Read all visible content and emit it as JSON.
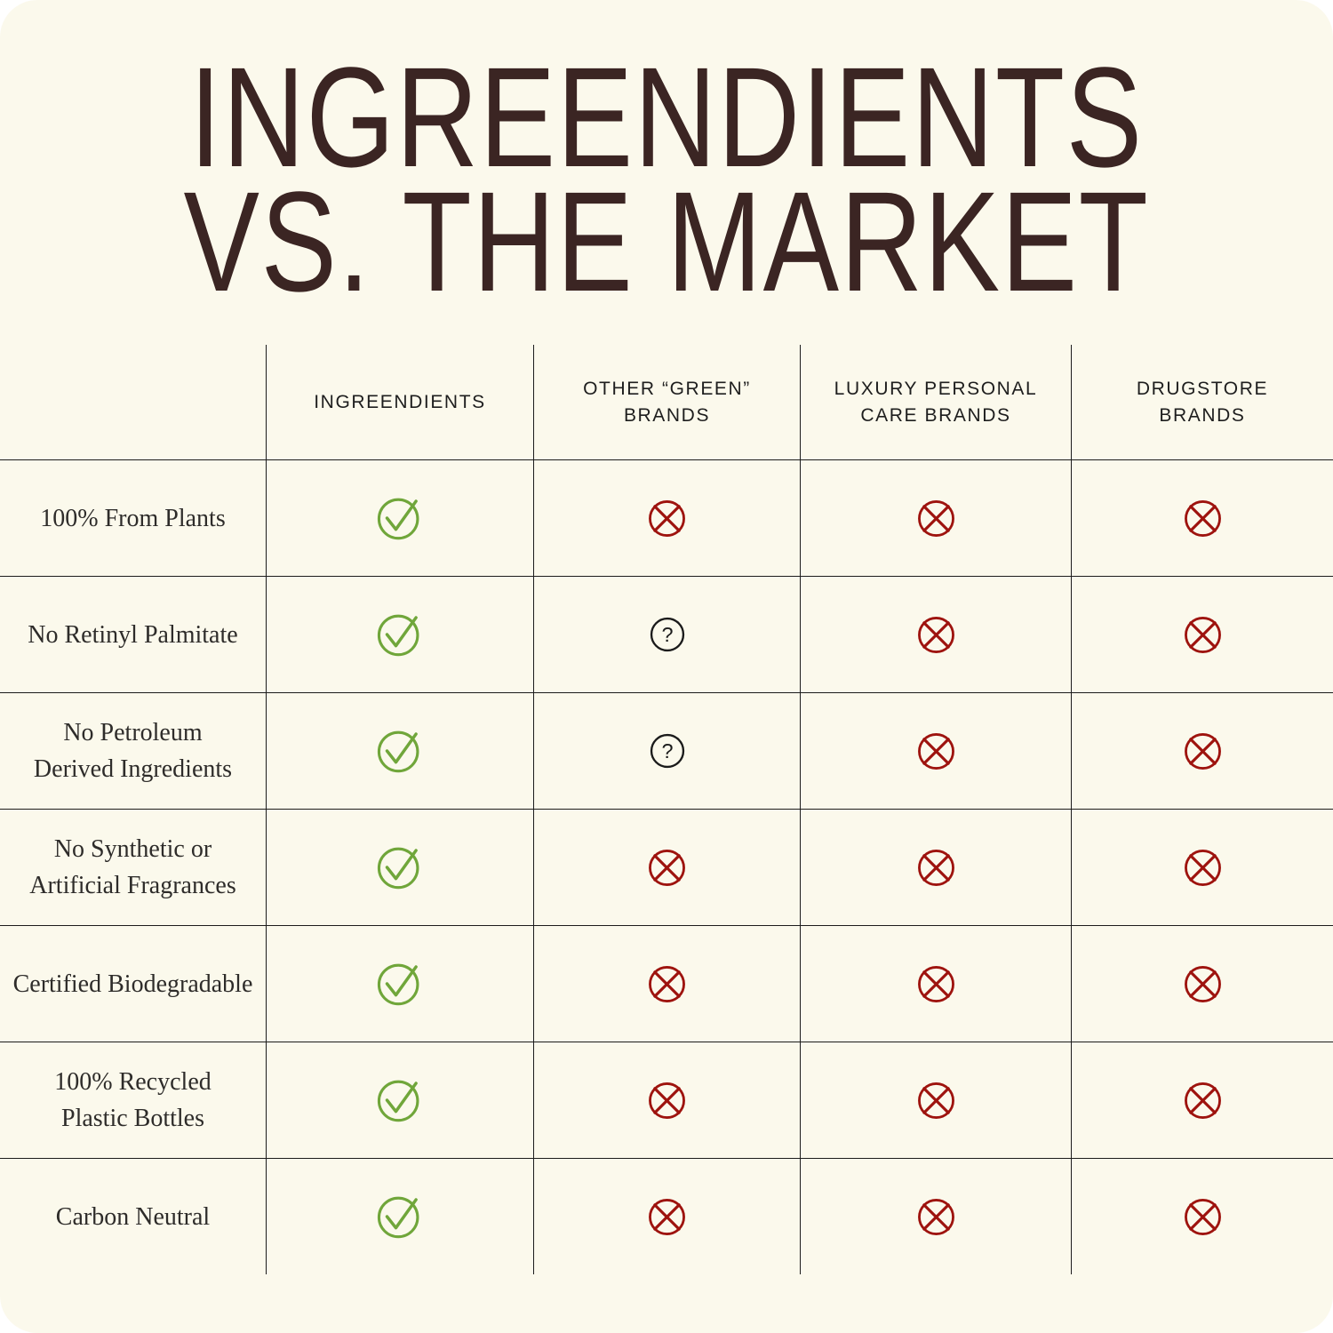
{
  "title": {
    "line1": "INGREENDIENTS",
    "line2": "VS. THE MARKET"
  },
  "colors": {
    "background": "#FBF9EC",
    "title_text": "#3B2523",
    "grid_line": "#1C1C1C",
    "header_text": "#1E1E1E",
    "label_text": "#2E2C2A",
    "check_green": "#70A63A",
    "cross_red": "#9E130E",
    "question_black": "#1B1B1B"
  },
  "table": {
    "columns": [
      {
        "id": "ingreendients",
        "lines": [
          "INGREENDIENTS"
        ]
      },
      {
        "id": "other-green-brands",
        "lines": [
          "OTHER “GREEN”",
          "BRANDS"
        ]
      },
      {
        "id": "luxury-personal-care-brands",
        "lines": [
          "LUXURY PERSONAL",
          "CARE BRANDS"
        ]
      },
      {
        "id": "drugstore-brands",
        "lines": [
          "DRUGSTORE",
          "BRANDS"
        ]
      }
    ],
    "rows": [
      {
        "lines": [
          "100% From Plants"
        ],
        "cells": [
          "check",
          "cross",
          "cross",
          "cross"
        ]
      },
      {
        "lines": [
          "No Retinyl Palmitate"
        ],
        "cells": [
          "check",
          "question",
          "cross",
          "cross"
        ]
      },
      {
        "lines": [
          "No Petroleum",
          "Derived Ingredients"
        ],
        "cells": [
          "check",
          "question",
          "cross",
          "cross"
        ]
      },
      {
        "lines": [
          "No Synthetic or",
          "Artificial Fragrances"
        ],
        "cells": [
          "check",
          "cross",
          "cross",
          "cross"
        ]
      },
      {
        "lines": [
          "Certified Biodegradable"
        ],
        "cells": [
          "check",
          "cross",
          "cross",
          "cross"
        ]
      },
      {
        "lines": [
          "100% Recycled",
          "Plastic Bottles"
        ],
        "cells": [
          "check",
          "cross",
          "cross",
          "cross"
        ]
      },
      {
        "lines": [
          "Carbon Neutral"
        ],
        "cells": [
          "check",
          "cross",
          "cross",
          "cross"
        ]
      }
    ]
  },
  "chart_data": {
    "type": "table",
    "title": "INGREENDIENTS VS. THE MARKET",
    "columns": [
      "",
      "INGREENDIENTS",
      "OTHER “GREEN” BRANDS",
      "LUXURY PERSONAL CARE BRANDS",
      "DRUGSTORE BRANDS"
    ],
    "rows": [
      [
        "100% From Plants",
        "yes",
        "no",
        "no",
        "no"
      ],
      [
        "No Retinyl Palmitate",
        "yes",
        "unknown",
        "no",
        "no"
      ],
      [
        "No Petroleum Derived Ingredients",
        "yes",
        "unknown",
        "no",
        "no"
      ],
      [
        "No Synthetic or Artificial Fragrances",
        "yes",
        "no",
        "no",
        "no"
      ],
      [
        "Certified Biodegradable",
        "yes",
        "no",
        "no",
        "no"
      ],
      [
        "100% Recycled Plastic Bottles",
        "yes",
        "no",
        "no",
        "no"
      ],
      [
        "Carbon Neutral",
        "yes",
        "no",
        "no",
        "no"
      ]
    ],
    "cell_symbols": {
      "yes": "green circled checkmark",
      "no": "red circled cross",
      "unknown": "black circled question mark"
    },
    "legend_position": "none",
    "grid": true
  }
}
